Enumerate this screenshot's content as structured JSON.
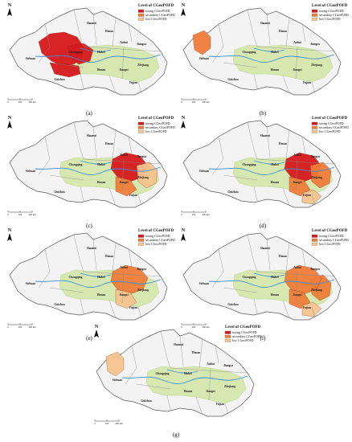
{
  "legend": {
    "title": "Level of CGeoPOFD",
    "items": [
      {
        "label": "strong CGeoPOFD",
        "color": "#d7191c"
      },
      {
        "label": "secondary CGeoPOFD",
        "color": "#f07d3a"
      },
      {
        "label": "low CGeoPOFD",
        "color": "#f7c48f"
      }
    ]
  },
  "north_label": "N",
  "scale": {
    "ticks": [
      "0",
      "200",
      "400 km"
    ]
  },
  "province_labels": [
    "Shaanxi",
    "Henan",
    "Sichuan",
    "Chongqing",
    "Hubei",
    "Anhui",
    "Jiangsu",
    "Zhejiang",
    "Hunan",
    "Jiangxi",
    "Guizhou",
    "Fujian"
  ],
  "colors": {
    "base_fill": "#f3f3f3",
    "green_fill": "#d6e8b0",
    "green_dark": "#b4d27f",
    "river": "#3d8fd6",
    "outline": "#5a5a5a"
  },
  "panels": [
    {
      "caption": "(a)",
      "highlights": [
        {
          "region": "sichuan-east",
          "level": "strong"
        },
        {
          "region": "chongqing",
          "level": "strong"
        },
        {
          "region": "guizhou-north",
          "level": "strong"
        }
      ]
    },
    {
      "caption": "(b)",
      "highlights": [
        {
          "region": "sichuan-west",
          "level": "secondary"
        }
      ]
    },
    {
      "caption": "(c)",
      "highlights": [
        {
          "region": "anhui",
          "level": "strong"
        },
        {
          "region": "jiangxi-north",
          "level": "secondary"
        },
        {
          "region": "zhejiang",
          "level": "low"
        }
      ]
    },
    {
      "caption": "(d)",
      "highlights": [
        {
          "region": "anhui",
          "level": "strong"
        },
        {
          "region": "jiangxi-north",
          "level": "secondary"
        },
        {
          "region": "zhejiang",
          "level": "secondary"
        },
        {
          "region": "fujian-north",
          "level": "low"
        }
      ]
    },
    {
      "caption": "(e)",
      "highlights": [
        {
          "region": "anhui",
          "level": "secondary"
        },
        {
          "region": "jiangxi-north",
          "level": "low"
        }
      ]
    },
    {
      "caption": "(f)",
      "highlights": [
        {
          "region": "zhejiang",
          "level": "secondary"
        },
        {
          "region": "anhui",
          "level": "secondary"
        },
        {
          "region": "jiangxi-north",
          "level": "secondary"
        },
        {
          "region": "fujian-north",
          "level": "low"
        }
      ]
    },
    {
      "caption": "(g)",
      "highlights": [
        {
          "region": "sichuan-west",
          "level": "low"
        }
      ]
    }
  ]
}
